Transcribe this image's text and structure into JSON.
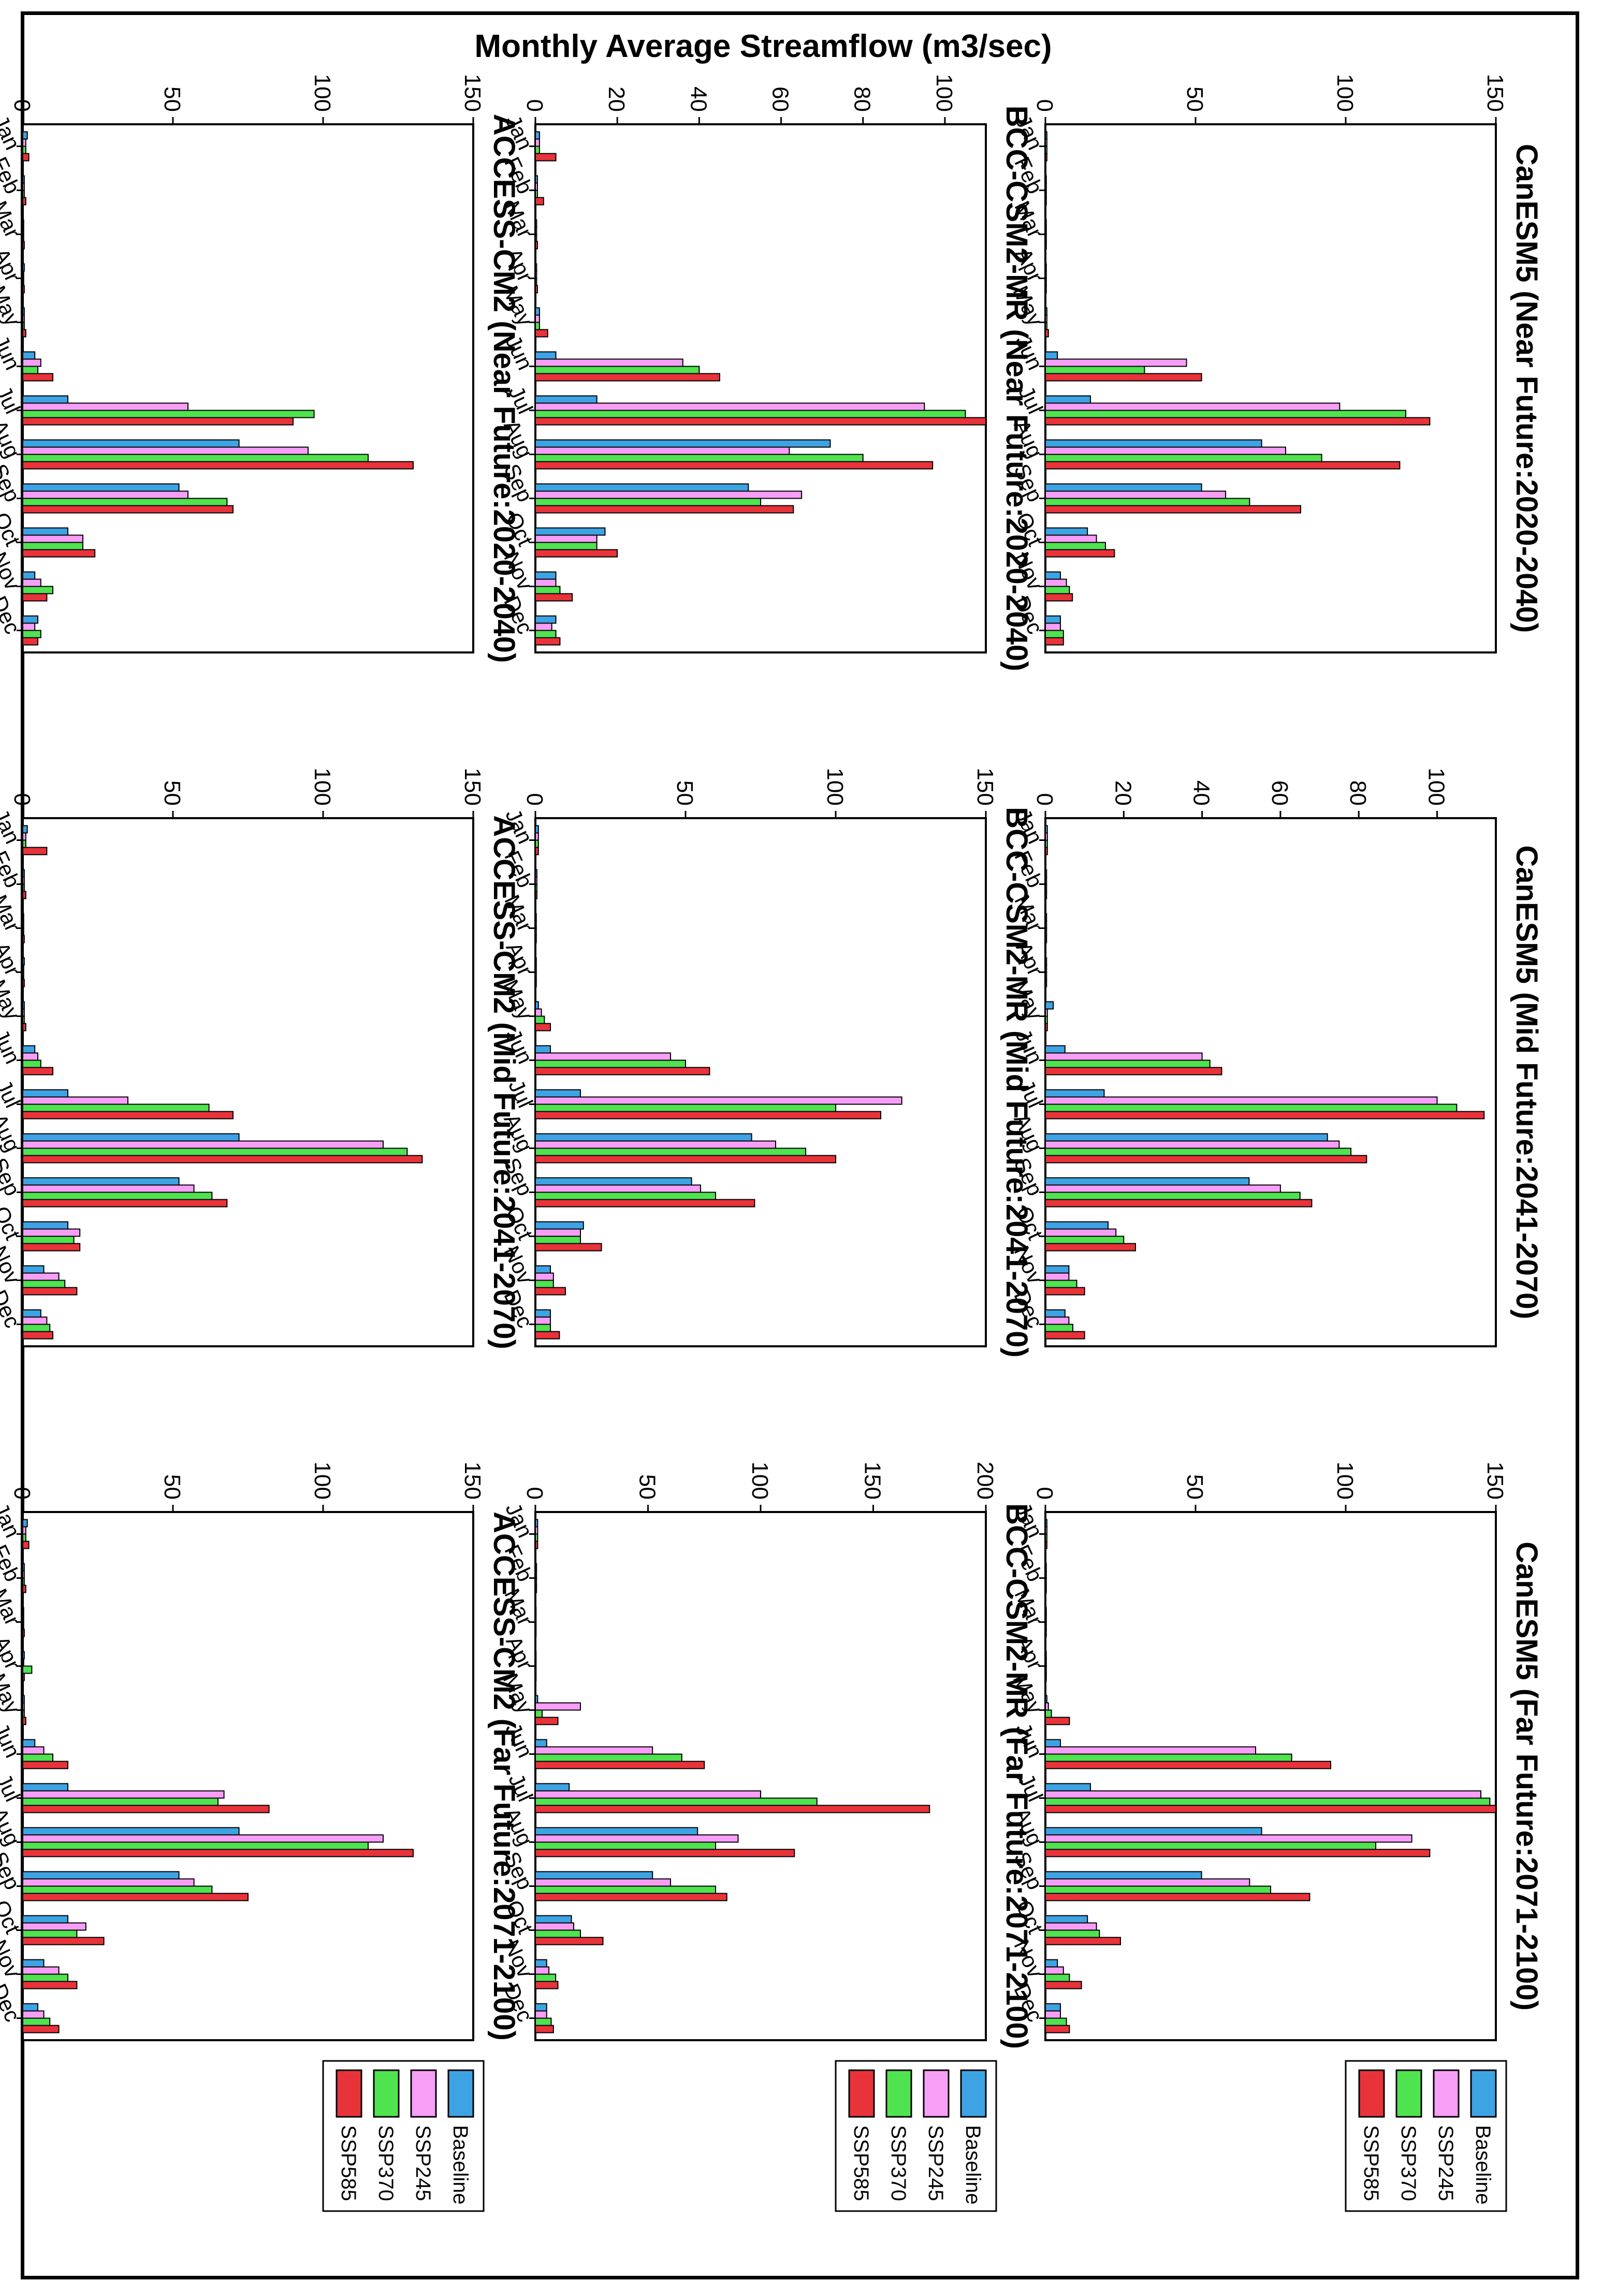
{
  "figure": {
    "ylabel": "Monthly      Average      Streamflow (m3/sec)",
    "months": [
      "Jan",
      "Feb",
      "Mar",
      "Apr",
      "May",
      "Jun",
      "Jul",
      "Aug",
      "Sep",
      "Oct",
      "Nov",
      "Dec"
    ]
  },
  "legend": {
    "entries": [
      {
        "name": "Baseline",
        "color": "#3ea3e3"
      },
      {
        "name": "SSP245",
        "color": "#f79ef7"
      },
      {
        "name": "SSP370",
        "color": "#4fe34f"
      },
      {
        "name": "SSP585",
        "color": "#e8333a"
      }
    ]
  },
  "chart_data": [
    {
      "type": "bar",
      "title": "ACCESS-CM2 (Near Future:2020-2040)",
      "model": "ACCESS-CM2",
      "period": "Near Future",
      "categories": [
        "Jan",
        "Feb",
        "Mar",
        "Apr",
        "May",
        "Jun",
        "Jul",
        "Aug",
        "Sep",
        "Oct",
        "Nov",
        "Dec"
      ],
      "ylim": [
        0,
        150
      ],
      "yticks": [
        0,
        50,
        100,
        150
      ],
      "series": [
        {
          "name": "Baseline",
          "values": [
            1.5,
            0.5,
            0.3,
            0.5,
            0.5,
            4,
            15,
            72,
            52,
            15,
            4,
            5
          ]
        },
        {
          "name": "SSP245",
          "values": [
            1,
            0.5,
            0.3,
            0.3,
            0.5,
            6,
            55,
            95,
            55,
            20,
            6,
            4
          ]
        },
        {
          "name": "SSP370",
          "values": [
            1,
            0.5,
            0.3,
            0.3,
            0.5,
            5,
            97,
            115,
            68,
            20,
            10,
            6
          ]
        },
        {
          "name": "SSP585",
          "values": [
            2,
            1,
            0.5,
            0.5,
            1,
            10,
            90,
            130,
            70,
            24,
            8,
            5
          ]
        }
      ]
    },
    {
      "type": "bar",
      "title": "ACCESS-CM2 (Mid Future:2041-2070)",
      "model": "ACCESS-CM2",
      "period": "Mid Future",
      "categories": [
        "Jan",
        "Feb",
        "Mar",
        "Apr",
        "May",
        "Jun",
        "Jul",
        "Aug",
        "Sep",
        "Oct",
        "Nov",
        "Dec"
      ],
      "ylim": [
        0,
        150
      ],
      "yticks": [
        0,
        50,
        100,
        150
      ],
      "series": [
        {
          "name": "Baseline",
          "values": [
            1.5,
            0.5,
            0.3,
            0.5,
            0.5,
            4,
            15,
            72,
            52,
            15,
            7,
            6
          ]
        },
        {
          "name": "SSP245",
          "values": [
            1,
            0.5,
            0.3,
            0.3,
            0.5,
            5,
            35,
            120,
            57,
            19,
            12,
            8
          ]
        },
        {
          "name": "SSP370",
          "values": [
            1,
            0.5,
            0.3,
            0.3,
            0.5,
            6,
            62,
            128,
            63,
            17,
            14,
            9
          ]
        },
        {
          "name": "SSP585",
          "values": [
            8,
            1,
            0.5,
            0.5,
            1,
            10,
            70,
            133,
            68,
            19,
            18,
            10
          ]
        }
      ]
    },
    {
      "type": "bar",
      "title": "ACCESS-CM2 (Far Future:2071-2100)",
      "model": "ACCESS-CM2",
      "period": "Far Future",
      "categories": [
        "Jan",
        "Feb",
        "Mar",
        "Apr",
        "May",
        "Jun",
        "Jul",
        "Aug",
        "Sep",
        "Oct",
        "Nov",
        "Dec"
      ],
      "ylim": [
        0,
        150
      ],
      "yticks": [
        0,
        50,
        100,
        150
      ],
      "series": [
        {
          "name": "Baseline",
          "values": [
            1.5,
            0.5,
            0.3,
            0.5,
            0.5,
            4,
            15,
            72,
            52,
            15,
            7,
            5
          ]
        },
        {
          "name": "SSP245",
          "values": [
            1,
            0.5,
            0.3,
            0.3,
            0.5,
            7,
            67,
            120,
            57,
            21,
            12,
            7
          ]
        },
        {
          "name": "SSP370",
          "values": [
            1,
            0.5,
            0.3,
            3,
            0.5,
            10,
            65,
            115,
            63,
            18,
            15,
            9
          ]
        },
        {
          "name": "SSP585",
          "values": [
            2,
            1,
            0.5,
            0.5,
            1,
            15,
            82,
            130,
            75,
            27,
            18,
            12
          ]
        }
      ]
    },
    {
      "type": "bar",
      "title": "BCC-CSM2-MR (Near Future:2020-2040)",
      "model": "BCC-CSM2-MR",
      "period": "Near Future",
      "categories": [
        "Jan",
        "Feb",
        "Mar",
        "Apr",
        "May",
        "Jun",
        "Jul",
        "Aug",
        "Sep",
        "Oct",
        "Nov",
        "Dec"
      ],
      "ylim": [
        0,
        110
      ],
      "yticks": [
        0,
        20,
        40,
        60,
        80,
        100
      ],
      "series": [
        {
          "name": "Baseline",
          "values": [
            1,
            0.5,
            0.3,
            0.3,
            1,
            5,
            15,
            72,
            52,
            17,
            5,
            5
          ]
        },
        {
          "name": "SSP245",
          "values": [
            1,
            0.5,
            0.3,
            0.3,
            1,
            36,
            95,
            62,
            65,
            15,
            5,
            4
          ]
        },
        {
          "name": "SSP370",
          "values": [
            1,
            0.5,
            0.3,
            0.3,
            1,
            40,
            105,
            80,
            55,
            15,
            6,
            5
          ]
        },
        {
          "name": "SSP585",
          "values": [
            5,
            2,
            0.5,
            0.5,
            3,
            45,
            110,
            97,
            63,
            20,
            9,
            6
          ]
        }
      ]
    },
    {
      "type": "bar",
      "title": "BCC-CSM2-MR (Mid Future:2041-2070)",
      "model": "BCC-CSM2-MR",
      "period": "Mid Future",
      "categories": [
        "Jan",
        "Feb",
        "Mar",
        "Apr",
        "May",
        "Jun",
        "Jul",
        "Aug",
        "Sep",
        "Oct",
        "Nov",
        "Dec"
      ],
      "ylim": [
        0,
        150
      ],
      "yticks": [
        0,
        50,
        100,
        150
      ],
      "series": [
        {
          "name": "Baseline",
          "values": [
            1,
            0.5,
            0.3,
            0.3,
            1,
            5,
            15,
            72,
            52,
            16,
            5,
            5
          ]
        },
        {
          "name": "SSP245",
          "values": [
            1,
            0.5,
            0.3,
            0.3,
            2,
            45,
            122,
            80,
            55,
            15,
            6,
            5
          ]
        },
        {
          "name": "SSP370",
          "values": [
            1,
            0.5,
            0.3,
            0.3,
            3,
            50,
            100,
            90,
            60,
            15,
            6,
            5
          ]
        },
        {
          "name": "SSP585",
          "values": [
            1,
            0.5,
            0.3,
            0.3,
            5,
            58,
            115,
            100,
            73,
            22,
            10,
            8
          ]
        }
      ]
    },
    {
      "type": "bar",
      "title": "BCC-CSM2-MR (Far Future:2071-2100)",
      "model": "BCC-CSM2-MR",
      "period": "Far Future",
      "categories": [
        "Jan",
        "Feb",
        "Mar",
        "Apr",
        "May",
        "Jun",
        "Jul",
        "Aug",
        "Sep",
        "Oct",
        "Nov",
        "Dec"
      ],
      "ylim": [
        0,
        200
      ],
      "yticks": [
        0,
        50,
        100,
        150,
        200
      ],
      "series": [
        {
          "name": "Baseline",
          "values": [
            1,
            0.5,
            0.3,
            0.3,
            1,
            5,
            15,
            72,
            52,
            16,
            5,
            5
          ]
        },
        {
          "name": "SSP245",
          "values": [
            1,
            0.5,
            0.3,
            0.3,
            20,
            52,
            100,
            90,
            60,
            17,
            6,
            5
          ]
        },
        {
          "name": "SSP370",
          "values": [
            1,
            0.5,
            0.3,
            0.3,
            3,
            65,
            125,
            80,
            80,
            20,
            9,
            7
          ]
        },
        {
          "name": "SSP585",
          "values": [
            1,
            0.5,
            0.3,
            0.3,
            10,
            75,
            175,
            115,
            85,
            30,
            10,
            8
          ]
        }
      ]
    },
    {
      "type": "bar",
      "title": "CanESM5 (Near Future:2020-2040)",
      "model": "CanESM5",
      "period": "Near Future",
      "categories": [
        "Jan",
        "Feb",
        "Mar",
        "Apr",
        "May",
        "Jun",
        "Jul",
        "Aug",
        "Sep",
        "Oct",
        "Nov",
        "Dec"
      ],
      "ylim": [
        0,
        150
      ],
      "yticks": [
        0,
        50,
        100,
        150
      ],
      "series": [
        {
          "name": "Baseline",
          "values": [
            0.5,
            0.3,
            0.3,
            0.3,
            0.5,
            4,
            15,
            72,
            52,
            14,
            5,
            5
          ]
        },
        {
          "name": "SSP245",
          "values": [
            0.5,
            0.3,
            0.3,
            0.3,
            0.5,
            47,
            98,
            80,
            60,
            17,
            7,
            5
          ]
        },
        {
          "name": "SSP370",
          "values": [
            0.5,
            0.3,
            0.3,
            0.3,
            0.5,
            33,
            120,
            92,
            68,
            20,
            8,
            6
          ]
        },
        {
          "name": "SSP585",
          "values": [
            0.5,
            0.3,
            0.3,
            0.3,
            1,
            52,
            128,
            118,
            85,
            23,
            9,
            6
          ]
        }
      ]
    },
    {
      "type": "bar",
      "title": "CanESM5 (Mid Future:2041-2070)",
      "model": "CanESM5",
      "period": "Mid Future",
      "categories": [
        "Jan",
        "Feb",
        "Mar",
        "Apr",
        "May",
        "Jun",
        "Jul",
        "Aug",
        "Sep",
        "Oct",
        "Nov",
        "Dec"
      ],
      "ylim": [
        0,
        115
      ],
      "yticks": [
        0,
        20,
        40,
        60,
        80,
        100
      ],
      "series": [
        {
          "name": "Baseline",
          "values": [
            0.5,
            0.3,
            0.3,
            0.3,
            2,
            5,
            15,
            72,
            52,
            16,
            6,
            5
          ]
        },
        {
          "name": "SSP245",
          "values": [
            0.5,
            0.3,
            0.3,
            0.3,
            0.5,
            40,
            100,
            75,
            60,
            18,
            6,
            6
          ]
        },
        {
          "name": "SSP370",
          "values": [
            0.5,
            0.3,
            0.3,
            0.3,
            0.5,
            42,
            105,
            78,
            65,
            20,
            8,
            7
          ]
        },
        {
          "name": "SSP585",
          "values": [
            0.5,
            0.3,
            0.3,
            0.3,
            0.5,
            45,
            112,
            82,
            68,
            23,
            10,
            10
          ]
        }
      ]
    },
    {
      "type": "bar",
      "title": "CanESM5 (Far Future:2071-2100)",
      "model": "CanESM5",
      "period": "Far Future",
      "categories": [
        "Jan",
        "Feb",
        "Mar",
        "Apr",
        "May",
        "Jun",
        "Jul",
        "Aug",
        "Sep",
        "Oct",
        "Nov",
        "Dec"
      ],
      "ylim": [
        0,
        150
      ],
      "yticks": [
        0,
        50,
        100,
        150
      ],
      "series": [
        {
          "name": "Baseline",
          "values": [
            0.5,
            0.3,
            0.3,
            0.3,
            0.5,
            5,
            15,
            72,
            52,
            14,
            4,
            5
          ]
        },
        {
          "name": "SSP245",
          "values": [
            0.5,
            0.3,
            0.3,
            0.3,
            1,
            70,
            145,
            122,
            68,
            17,
            6,
            5
          ]
        },
        {
          "name": "SSP370",
          "values": [
            0.5,
            0.3,
            0.3,
            0.3,
            2,
            82,
            148,
            110,
            75,
            18,
            8,
            7
          ]
        },
        {
          "name": "SSP585",
          "values": [
            0.5,
            0.3,
            0.3,
            0.3,
            8,
            95,
            150,
            128,
            88,
            25,
            12,
            8
          ]
        }
      ]
    }
  ]
}
